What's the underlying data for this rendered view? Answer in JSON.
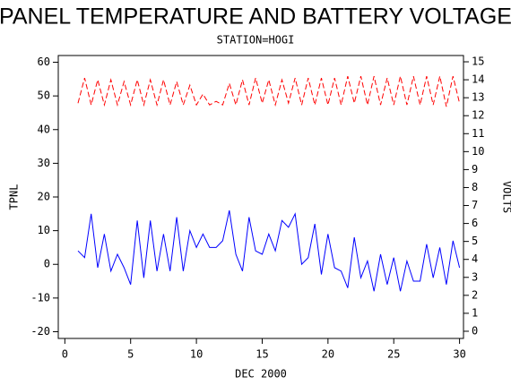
{
  "chart_data": {
    "type": "line",
    "title": "PANEL TEMPERATURE AND BATTERY VOLTAGE",
    "subtitle": "STATION=HOGI",
    "xlabel": "DEC 2000",
    "ylabel": "TPNL",
    "y2label": "VOLTS",
    "x": [
      1,
      1.5,
      2,
      2.5,
      3,
      3.5,
      4,
      4.5,
      5,
      5.5,
      6,
      6.5,
      7,
      7.5,
      8,
      8.5,
      9,
      9.5,
      10,
      10.5,
      11,
      11.5,
      12,
      12.5,
      13,
      13.5,
      14,
      14.5,
      15,
      15.5,
      16,
      16.5,
      17,
      17.5,
      18,
      18.5,
      19,
      19.5,
      20,
      20.5,
      21,
      21.5,
      22,
      22.5,
      23,
      23.5,
      24,
      24.5,
      25,
      25.5,
      26,
      26.5,
      27,
      27.5,
      28,
      28.5,
      29,
      29.5,
      30
    ],
    "series": [
      {
        "color": "#0000ff",
        "axis": "y",
        "values": [
          4,
          2,
          15,
          -1,
          9,
          -2,
          3,
          -1,
          -6,
          13,
          -4,
          13,
          -2,
          9,
          -2,
          14,
          -2,
          10,
          5,
          9,
          5,
          5,
          7,
          16,
          3,
          -2,
          14,
          4,
          3,
          9,
          4,
          13,
          11,
          15,
          0,
          2,
          12,
          -3,
          9,
          -1,
          -2,
          -7,
          8,
          -4,
          1,
          -8,
          3,
          -6,
          2,
          -8,
          1,
          -5,
          -5,
          6,
          -4,
          5,
          -6,
          7,
          -1
        ]
      },
      {
        "color": "#ff0000",
        "axis": "y2",
        "dashed": true,
        "values": [
          12.7,
          14.1,
          12.6,
          14.0,
          12.6,
          14.0,
          12.6,
          13.9,
          12.6,
          14.0,
          12.6,
          14.0,
          12.6,
          14.0,
          12.6,
          13.9,
          12.6,
          13.7,
          12.6,
          13.2,
          12.6,
          12.8,
          12.6,
          13.8,
          12.6,
          14.0,
          12.6,
          14.1,
          12.7,
          14.0,
          12.6,
          14.0,
          12.7,
          14.1,
          12.6,
          14.1,
          12.6,
          14.1,
          12.6,
          14.1,
          12.6,
          14.2,
          12.7,
          14.2,
          12.6,
          14.2,
          12.6,
          14.1,
          12.6,
          14.2,
          12.6,
          14.2,
          12.6,
          14.2,
          12.6,
          14.2,
          12.5,
          14.2,
          12.7
        ]
      }
    ],
    "xlim": [
      -0.5,
      30.3
    ],
    "xticks": [
      0,
      5,
      10,
      15,
      20,
      25,
      30
    ],
    "ylim": [
      -22,
      62
    ],
    "yticks": [
      -20,
      -10,
      0,
      10,
      20,
      30,
      40,
      50,
      60
    ],
    "y2lim": [
      -0.4,
      15.35
    ],
    "y2ticks": [
      0,
      1,
      2,
      3,
      4,
      5,
      6,
      7,
      8,
      9,
      10,
      11,
      12,
      13,
      14,
      15
    ]
  }
}
